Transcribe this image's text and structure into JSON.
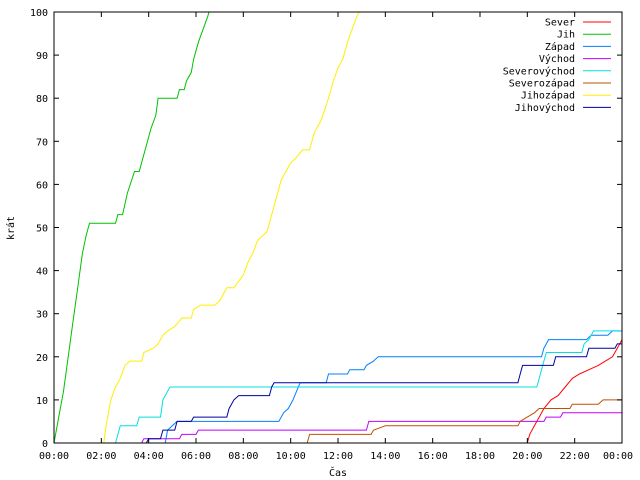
{
  "chart_data": {
    "type": "line",
    "title": "",
    "xlabel": "Čas",
    "ylabel": "krát",
    "xlim": [
      0,
      24
    ],
    "ylim": [
      0,
      100
    ],
    "x_ticks": [
      "00:00",
      "02:00",
      "04:00",
      "06:00",
      "08:00",
      "10:00",
      "12:00",
      "14:00",
      "16:00",
      "18:00",
      "20:00",
      "22:00",
      "00:00"
    ],
    "y_ticks": [
      "0",
      "10",
      "20",
      "30",
      "40",
      "50",
      "60",
      "70",
      "80",
      "90",
      "100"
    ],
    "grid": false,
    "legend_position": "top-right",
    "series": [
      {
        "name": "Sever",
        "color": "#ff0000",
        "points": [
          [
            0,
            0
          ],
          [
            20.0,
            0
          ],
          [
            20.1,
            2
          ],
          [
            20.3,
            4
          ],
          [
            20.5,
            6
          ],
          [
            20.7,
            8
          ],
          [
            21.0,
            10
          ],
          [
            21.3,
            11
          ],
          [
            21.6,
            13
          ],
          [
            21.9,
            15
          ],
          [
            22.2,
            16
          ],
          [
            22.6,
            17
          ],
          [
            23.0,
            18
          ],
          [
            23.3,
            19
          ],
          [
            23.6,
            20
          ],
          [
            23.8,
            22
          ],
          [
            24,
            24
          ]
        ]
      },
      {
        "name": "Jih",
        "color": "#00c000",
        "points": [
          [
            0,
            0
          ],
          [
            0.2,
            6
          ],
          [
            0.4,
            12
          ],
          [
            0.6,
            20
          ],
          [
            0.8,
            28
          ],
          [
            1.0,
            36
          ],
          [
            1.2,
            44
          ],
          [
            1.35,
            48
          ],
          [
            1.5,
            51
          ],
          [
            1.7,
            51
          ],
          [
            2.0,
            51
          ],
          [
            2.6,
            51
          ],
          [
            2.7,
            53
          ],
          [
            2.9,
            53
          ],
          [
            3.1,
            58
          ],
          [
            3.4,
            63
          ],
          [
            3.6,
            63
          ],
          [
            3.9,
            69
          ],
          [
            4.1,
            73
          ],
          [
            4.3,
            76
          ],
          [
            4.4,
            80
          ],
          [
            4.7,
            80
          ],
          [
            5.2,
            80
          ],
          [
            5.3,
            82
          ],
          [
            5.5,
            82
          ],
          [
            5.6,
            84
          ],
          [
            5.8,
            86
          ],
          [
            5.9,
            89
          ],
          [
            6.1,
            93
          ],
          [
            6.3,
            96
          ],
          [
            6.5,
            99
          ],
          [
            6.55,
            100
          ]
        ]
      },
      {
        "name": "Západ",
        "color": "#0080ff",
        "points": [
          [
            0,
            0
          ],
          [
            4.7,
            0
          ],
          [
            4.8,
            3
          ],
          [
            5.0,
            4
          ],
          [
            5.2,
            5
          ],
          [
            9.5,
            5
          ],
          [
            9.7,
            7
          ],
          [
            9.9,
            8
          ],
          [
            10.1,
            10
          ],
          [
            10.4,
            14
          ],
          [
            11.5,
            14
          ],
          [
            11.6,
            16
          ],
          [
            12.4,
            16
          ],
          [
            12.5,
            17
          ],
          [
            13.1,
            17
          ],
          [
            13.2,
            18
          ],
          [
            13.5,
            19
          ],
          [
            13.7,
            20
          ],
          [
            20.6,
            20
          ],
          [
            20.7,
            22
          ],
          [
            20.9,
            24
          ],
          [
            22.5,
            24
          ],
          [
            22.7,
            25
          ],
          [
            23.4,
            25
          ],
          [
            23.6,
            26
          ],
          [
            24,
            26
          ]
        ]
      },
      {
        "name": "Východ",
        "color": "#c000ff",
        "points": [
          [
            0,
            0
          ],
          [
            3.7,
            0
          ],
          [
            3.8,
            1
          ],
          [
            5.3,
            1
          ],
          [
            5.4,
            2
          ],
          [
            6.0,
            2
          ],
          [
            6.1,
            3
          ],
          [
            13.2,
            3
          ],
          [
            13.3,
            5
          ],
          [
            20.7,
            5
          ],
          [
            20.8,
            6
          ],
          [
            21.4,
            6
          ],
          [
            21.5,
            7
          ],
          [
            24,
            7
          ]
        ]
      },
      {
        "name": "Severovýchod",
        "color": "#00e0e0",
        "points": [
          [
            0,
            0
          ],
          [
            2.6,
            0
          ],
          [
            2.7,
            2
          ],
          [
            2.8,
            4
          ],
          [
            3.5,
            4
          ],
          [
            3.6,
            6
          ],
          [
            4.5,
            6
          ],
          [
            4.6,
            10
          ],
          [
            4.8,
            12
          ],
          [
            4.9,
            13
          ],
          [
            9.7,
            13
          ],
          [
            10.8,
            13
          ],
          [
            20.4,
            13
          ],
          [
            20.5,
            15
          ],
          [
            20.6,
            17
          ],
          [
            20.7,
            19
          ],
          [
            20.8,
            21
          ],
          [
            22.3,
            21
          ],
          [
            22.4,
            23
          ],
          [
            22.6,
            24
          ],
          [
            22.8,
            26
          ],
          [
            24,
            26
          ]
        ]
      },
      {
        "name": "Severozápad",
        "color": "#c05000",
        "points": [
          [
            0,
            0
          ],
          [
            10.7,
            0
          ],
          [
            10.8,
            2
          ],
          [
            13.4,
            2
          ],
          [
            13.5,
            3
          ],
          [
            14.0,
            4
          ],
          [
            19.6,
            4
          ],
          [
            19.7,
            5
          ],
          [
            20.0,
            6
          ],
          [
            20.3,
            7
          ],
          [
            20.5,
            8
          ],
          [
            21.8,
            8
          ],
          [
            21.9,
            9
          ],
          [
            23.0,
            9
          ],
          [
            23.2,
            10
          ],
          [
            24,
            10
          ]
        ]
      },
      {
        "name": "Jihozápad",
        "color": "#ffee00",
        "points": [
          [
            0,
            0
          ],
          [
            2.1,
            0
          ],
          [
            2.2,
            4
          ],
          [
            2.4,
            10
          ],
          [
            2.6,
            13
          ],
          [
            2.8,
            15
          ],
          [
            3.0,
            18
          ],
          [
            3.2,
            19
          ],
          [
            3.7,
            19
          ],
          [
            3.8,
            21
          ],
          [
            4.2,
            22
          ],
          [
            4.4,
            23
          ],
          [
            4.6,
            25
          ],
          [
            4.8,
            26
          ],
          [
            5.1,
            27
          ],
          [
            5.4,
            29
          ],
          [
            5.8,
            29
          ],
          [
            5.9,
            31
          ],
          [
            6.2,
            32
          ],
          [
            6.8,
            32
          ],
          [
            7.0,
            33
          ],
          [
            7.3,
            36
          ],
          [
            7.6,
            36
          ],
          [
            8.0,
            39
          ],
          [
            8.2,
            42
          ],
          [
            8.4,
            44
          ],
          [
            8.6,
            47
          ],
          [
            8.8,
            48
          ],
          [
            9.0,
            49
          ],
          [
            9.2,
            53
          ],
          [
            9.4,
            57
          ],
          [
            9.6,
            61
          ],
          [
            9.8,
            63
          ],
          [
            10.0,
            65
          ],
          [
            10.2,
            66
          ],
          [
            10.5,
            68
          ],
          [
            10.8,
            68
          ],
          [
            11.0,
            72
          ],
          [
            11.3,
            75
          ],
          [
            11.6,
            80
          ],
          [
            11.8,
            84
          ],
          [
            12.0,
            87
          ],
          [
            12.2,
            89
          ],
          [
            12.4,
            93
          ],
          [
            12.6,
            96
          ],
          [
            12.8,
            99
          ],
          [
            12.9,
            100
          ]
        ]
      },
      {
        "name": "Jihovýchod",
        "color": "#0000a0",
        "points": [
          [
            0,
            0
          ],
          [
            3.9,
            0
          ],
          [
            4.0,
            1
          ],
          [
            4.5,
            1
          ],
          [
            4.6,
            3
          ],
          [
            5.1,
            3
          ],
          [
            5.2,
            5
          ],
          [
            5.8,
            5
          ],
          [
            5.9,
            6
          ],
          [
            7.3,
            6
          ],
          [
            7.4,
            8
          ],
          [
            7.6,
            10
          ],
          [
            7.8,
            11
          ],
          [
            9.1,
            11
          ],
          [
            9.2,
            13
          ],
          [
            9.3,
            14
          ],
          [
            19.6,
            14
          ],
          [
            19.7,
            16
          ],
          [
            19.8,
            18
          ],
          [
            21.1,
            18
          ],
          [
            21.2,
            20
          ],
          [
            22.5,
            20
          ],
          [
            22.6,
            22
          ],
          [
            23.7,
            22
          ],
          [
            23.8,
            23
          ],
          [
            24,
            23
          ]
        ]
      }
    ]
  }
}
